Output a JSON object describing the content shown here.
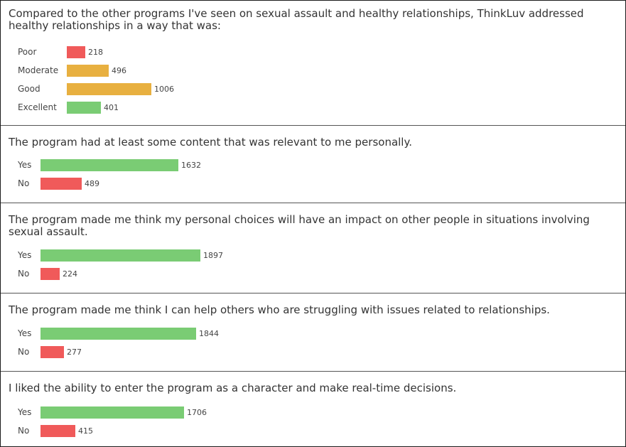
{
  "colors": {
    "green": "#7acc74",
    "red": "#f05a5a",
    "orange": "#e8b040"
  },
  "sections": [
    {
      "question": "Compared to the other programs I've seen on sexual assault and healthy relationships, ThinkLuv addressed healthy relationships in a way that was:",
      "chart_data": {
        "type": "bar",
        "orientation": "horizontal",
        "categories": [
          "Poor",
          "Moderate",
          "Good",
          "Excellent"
        ],
        "values": [
          218,
          496,
          1006,
          401
        ],
        "bar_colors": [
          "red",
          "orange",
          "orange",
          "green"
        ]
      }
    },
    {
      "question": "The program had at least some content that was relevant to me personally.",
      "chart_data": {
        "type": "bar",
        "orientation": "horizontal",
        "categories": [
          "Yes",
          "No"
        ],
        "values": [
          1632,
          489
        ],
        "bar_colors": [
          "green",
          "red"
        ]
      }
    },
    {
      "question": "The program made me think my personal choices will have an impact on other people in situations involving sexual assault.",
      "chart_data": {
        "type": "bar",
        "orientation": "horizontal",
        "categories": [
          "Yes",
          "No"
        ],
        "values": [
          1897,
          224
        ],
        "bar_colors": [
          "green",
          "red"
        ]
      }
    },
    {
      "question": "The program made me think I can help others who are struggling with issues related to relationships.",
      "chart_data": {
        "type": "bar",
        "orientation": "horizontal",
        "categories": [
          "Yes",
          "No"
        ],
        "values": [
          1844,
          277
        ],
        "bar_colors": [
          "green",
          "red"
        ]
      }
    },
    {
      "question": "I liked the ability to enter the program as a character and make real-time decisions.",
      "chart_data": {
        "type": "bar",
        "orientation": "horizontal",
        "categories": [
          "Yes",
          "No"
        ],
        "values": [
          1706,
          415
        ],
        "bar_colors": [
          "green",
          "red"
        ]
      }
    }
  ]
}
